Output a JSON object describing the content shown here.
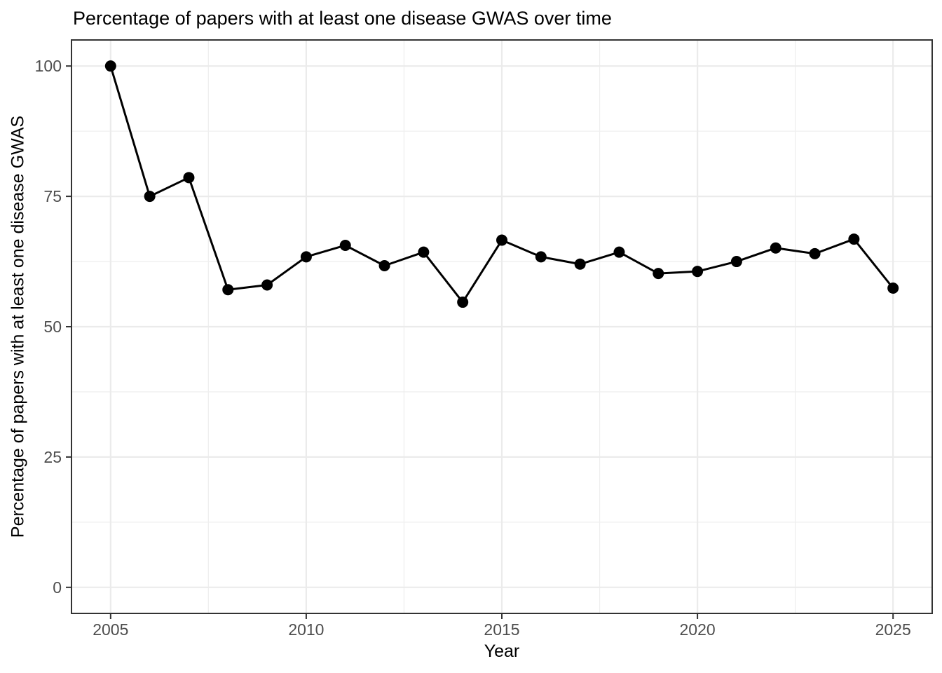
{
  "chart_data": {
    "type": "line",
    "title": "Percentage of papers with at least one disease GWAS over time",
    "xlabel": "Year",
    "ylabel": "Percentage of papers with at least one disease GWAS",
    "x": [
      2005,
      2006,
      2007,
      2008,
      2009,
      2010,
      2011,
      2012,
      2013,
      2014,
      2015,
      2016,
      2017,
      2018,
      2019,
      2020,
      2021,
      2022,
      2023,
      2024,
      2025
    ],
    "values": [
      100,
      75,
      78.6,
      57.1,
      58,
      63.4,
      65.6,
      61.7,
      64.3,
      54.7,
      66.6,
      63.4,
      62,
      64.3,
      60.2,
      60.6,
      62.5,
      65.1,
      64,
      66.8,
      57.4
    ],
    "series_name": "Percentage of papers with at least one disease GWAS",
    "x_ticks": [
      2005,
      2010,
      2015,
      2020,
      2025
    ],
    "y_ticks": [
      0,
      25,
      50,
      75,
      100
    ],
    "x_minor_ticks": [
      2007.5,
      2012.5,
      2017.5,
      2022.5
    ],
    "y_minor_ticks": [
      12.5,
      37.5,
      62.5,
      87.5
    ],
    "xlim": [
      2004,
      2026
    ],
    "ylim": [
      -5,
      105
    ],
    "grid": "on",
    "legend": "none",
    "colors": {
      "line": "#000000",
      "point": "#000000",
      "grid_major": "#ebebeb",
      "grid_minor": "#efefef",
      "panel_border": "#333333",
      "tick_mark": "#333333",
      "tick_label": "#4d4d4d",
      "background": "#ffffff"
    }
  }
}
